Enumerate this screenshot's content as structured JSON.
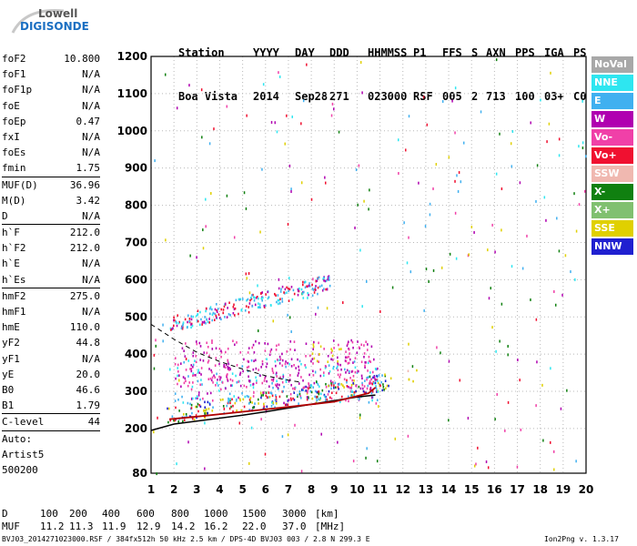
{
  "logo": {
    "line1": "Lowell",
    "line2": "DIGISONDE"
  },
  "header": {
    "labels": [
      "Station",
      "YYYY",
      "DAY",
      "DDD",
      "HHMMSS",
      "P1",
      "FFS",
      "S",
      "AXN",
      "PPS",
      "IGA",
      "PS"
    ],
    "values": [
      "Boa Vista",
      "2014",
      "Sep28",
      "271",
      "023000",
      "RSF",
      "005",
      "2",
      "713",
      "100",
      "03+",
      "C0"
    ]
  },
  "params": [
    {
      "name": "foF2",
      "value": "10.800"
    },
    {
      "name": "foF1",
      "value": "N/A"
    },
    {
      "name": "foF1p",
      "value": "N/A"
    },
    {
      "name": "foE",
      "value": "N/A"
    },
    {
      "name": "foEp",
      "value": "0.47"
    },
    {
      "name": "fxI",
      "value": "N/A"
    },
    {
      "name": "foEs",
      "value": "N/A"
    },
    {
      "name": "fmin",
      "value": "1.75"
    },
    {
      "name": "MUF(D)",
      "value": "36.96",
      "sep": true
    },
    {
      "name": "M(D)",
      "value": "3.42"
    },
    {
      "name": "D",
      "value": "N/A"
    },
    {
      "name": "h`F",
      "value": "212.0",
      "sep": true
    },
    {
      "name": "h`F2",
      "value": "212.0"
    },
    {
      "name": "h`E",
      "value": "N/A"
    },
    {
      "name": "h`Es",
      "value": "N/A"
    },
    {
      "name": "hmF2",
      "value": "275.0",
      "sep": true
    },
    {
      "name": "hmF1",
      "value": "N/A"
    },
    {
      "name": "hmE",
      "value": "110.0"
    },
    {
      "name": "yF2",
      "value": "44.8"
    },
    {
      "name": "yF1",
      "value": "N/A"
    },
    {
      "name": "yE",
      "value": "20.0"
    },
    {
      "name": "B0",
      "value": "46.6"
    },
    {
      "name": "B1",
      "value": "1.79"
    },
    {
      "name": "C-level",
      "value": "44",
      "sep": true
    }
  ],
  "auto_block": {
    "line1": "Auto:",
    "line2": "Artist5",
    "line3": "500200"
  },
  "legend": [
    {
      "label": "NoVal",
      "color": "#a8a8a8"
    },
    {
      "label": "NNE",
      "color": "#2ee6f0"
    },
    {
      "label": "E",
      "color": "#40b0f0"
    },
    {
      "label": "W",
      "color": "#b000b0"
    },
    {
      "label": "Vo-",
      "color": "#f040a8"
    },
    {
      "label": "Vo+",
      "color": "#f01030"
    },
    {
      "label": "SSW",
      "color": "#f0b8b0"
    },
    {
      "label": "X-",
      "color": "#108010"
    },
    {
      "label": "X+",
      "color": "#80c070"
    },
    {
      "label": "SSE",
      "color": "#e0d000"
    },
    {
      "label": "NNW",
      "color": "#2020d0"
    }
  ],
  "footer": {
    "d_label": "D",
    "d_values": [
      "100",
      "200",
      "400",
      "600",
      "800",
      "1000",
      "1500",
      "3000"
    ],
    "d_unit": "[km]",
    "muf_label": "MUF",
    "muf_values": [
      "11.2",
      "11.3",
      "11.9",
      "12.9",
      "14.2",
      "16.2",
      "22.0",
      "37.0"
    ],
    "muf_unit": "[MHz]",
    "file_info": "BVJ03_2014271023000.RSF / 384fx512h 50 kHz 2.5 km / DPS-4D BVJ03 003 / 2.8 N 299.3 E",
    "version": "Ion2Png v. 1.3.17"
  },
  "chart_data": {
    "type": "scatter",
    "xlim": [
      1,
      20
    ],
    "ylim": [
      80,
      1200
    ],
    "x_ticks": [
      1,
      2,
      3,
      4,
      5,
      6,
      7,
      8,
      9,
      10,
      11,
      12,
      13,
      14,
      15,
      16,
      17,
      18,
      19,
      20
    ],
    "y_ticks": [
      80,
      200,
      300,
      400,
      500,
      600,
      700,
      800,
      900,
      1000,
      1100,
      1200
    ],
    "grid": true,
    "traces": [
      {
        "name": "F2 virtual trace",
        "x": [
          1.0,
          2.0,
          3.0,
          4.0,
          5.0,
          6.0,
          7.0,
          8.0,
          9.0,
          10.0,
          10.8
        ],
        "y": [
          195,
          212,
          220,
          228,
          236,
          245,
          255,
          265,
          275,
          285,
          290
        ]
      },
      {
        "name": "F2 model profile",
        "x": [
          1.8,
          3,
          5,
          7,
          9,
          10.5,
          10.8
        ],
        "y": [
          225,
          232,
          245,
          258,
          272,
          295,
          310
        ]
      }
    ],
    "dashed_profile": {
      "x": [
        1.0,
        2.0,
        3.0,
        4.0,
        5.0,
        6.0,
        7.0,
        7.5
      ],
      "y": [
        480,
        440,
        405,
        380,
        360,
        342,
        330,
        325
      ]
    },
    "echo_clusters": [
      {
        "x": [
          1.6,
          11.5
        ],
        "y": [
          215,
          330
        ],
        "colors": [
          "#f01030",
          "#40b0f0",
          "#108010",
          "#e0d000",
          "#2020d0"
        ]
      },
      {
        "x": [
          2.0,
          11.0
        ],
        "y": [
          270,
          390
        ],
        "colors": [
          "#b000b0",
          "#f040a8",
          "#40b0f0",
          "#2ee6f0"
        ]
      },
      {
        "x": [
          2.0,
          10.8
        ],
        "y": [
          310,
          440
        ],
        "colors": [
          "#b000b0",
          "#f040a8"
        ]
      },
      {
        "x": [
          1.8,
          8.8
        ],
        "y": [
          460,
          610
        ],
        "colors": [
          "#40b0f0",
          "#2ee6f0",
          "#f01030",
          "#b000b0"
        ]
      },
      {
        "x": [
          8.0,
          9.3
        ],
        "y": [
          380,
          430
        ],
        "colors": [
          "#e0d000"
        ]
      },
      {
        "x": [
          12.0,
          12.6
        ],
        "y": [
          320,
          360
        ],
        "colors": [
          "#e0d000",
          "#f0b8b0"
        ]
      }
    ]
  }
}
